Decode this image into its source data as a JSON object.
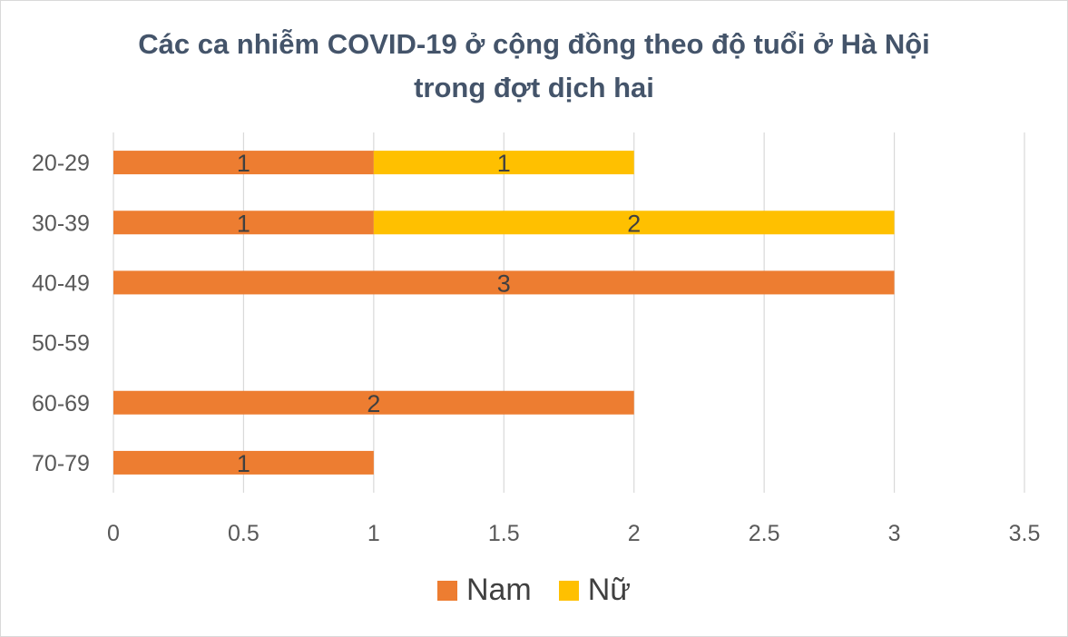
{
  "chart_data": {
    "type": "bar",
    "orientation": "horizontal",
    "stacked": true,
    "title": "Các ca nhiễm COVID-19 ở cộng đồng theo độ tuổi ở Hà Nội",
    "title_line2": "trong đợt dịch hai",
    "categories": [
      "20-29",
      "30-39",
      "40-49",
      "50-59",
      "60-69",
      "70-79"
    ],
    "series": [
      {
        "name": "Nam",
        "color": "#ed7d31",
        "values": [
          1,
          1,
          3,
          0,
          2,
          1
        ]
      },
      {
        "name": "Nữ",
        "color": "#ffc000",
        "values": [
          1,
          2,
          0,
          0,
          0,
          0
        ]
      }
    ],
    "xlim": [
      0,
      3.5
    ],
    "x_ticks": [
      "0",
      "0.5",
      "1",
      "1.5",
      "2",
      "2.5",
      "3",
      "3.5"
    ],
    "grid": true,
    "legend_position": "bottom",
    "data_labels": true
  }
}
